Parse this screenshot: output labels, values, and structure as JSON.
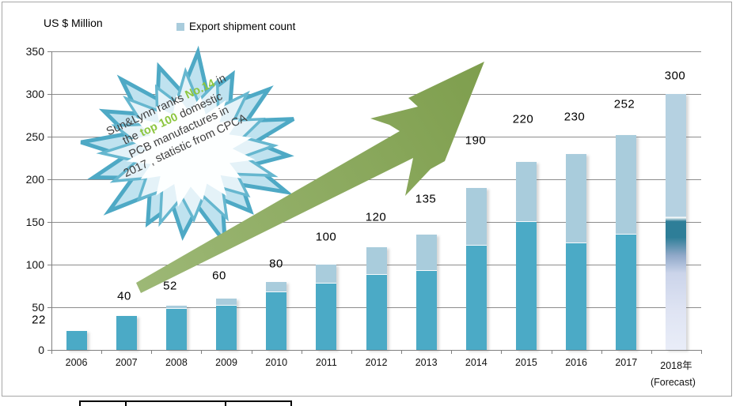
{
  "chart_data": {
    "type": "bar",
    "stacked": true,
    "title": "US $ Million",
    "legend_label": "Export shipment  count",
    "legend_position": "top",
    "grid": true,
    "ylim": [
      0,
      350
    ],
    "yticks": [
      0,
      50,
      100,
      150,
      200,
      250,
      300,
      350
    ],
    "categories": [
      "2006",
      "2007",
      "2008",
      "2009",
      "2010",
      "2011",
      "2012",
      "2013",
      "2014",
      "2015",
      "2016",
      "2017",
      "2018年"
    ],
    "forecast_label": "(Forecast)",
    "forecast_index": 12,
    "totals": [
      22,
      40,
      52,
      60,
      80,
      100,
      120,
      135,
      190,
      220,
      230,
      252,
      300
    ],
    "series": [
      {
        "name": "",
        "color": "#4BAAC6",
        "values": [
          22,
          40,
          48,
          52,
          68,
          78,
          88,
          93,
          122,
          150,
          125,
          135,
          155
        ]
      },
      {
        "name": "Export shipment  count",
        "color": "#A9CCDC",
        "values": [
          0,
          0,
          4,
          8,
          12,
          22,
          32,
          42,
          68,
          70,
          105,
          117,
          145
        ]
      }
    ],
    "colors": {
      "grid": "#8C8C8C",
      "axis": "#808080",
      "forecast_top": "#B5D1E1",
      "forecast_dark": "#2E7E98",
      "forecast_fade": "#E9EDF8"
    }
  },
  "annotation": {
    "lines": [
      [
        {
          "t": "Sun&Lynn ranks "
        },
        {
          "t": "No.14",
          "hl": true
        },
        {
          "t": " in"
        }
      ],
      [
        {
          "t": "the "
        },
        {
          "t": "top 100",
          "hl": true
        },
        {
          "t": "  domestic"
        }
      ],
      [
        {
          "t": "PCB manufactures in"
        }
      ],
      [
        {
          "t": "2017 , statistic from CPCA"
        }
      ]
    ],
    "highlight_color": "#8CC63F",
    "text_color": "#3F3F3F",
    "burst_outer_fill": "#BFE2EF",
    "burst_outer_stroke": "#4EA9C5",
    "burst_mid_fill": "#E4F2F8",
    "burst_mid_stroke": "#66B7CF",
    "burst_inner_fill": "#FDFFFF"
  },
  "arrow": {
    "color_from": "#9DB876",
    "color_to": "#7E9E4D"
  }
}
